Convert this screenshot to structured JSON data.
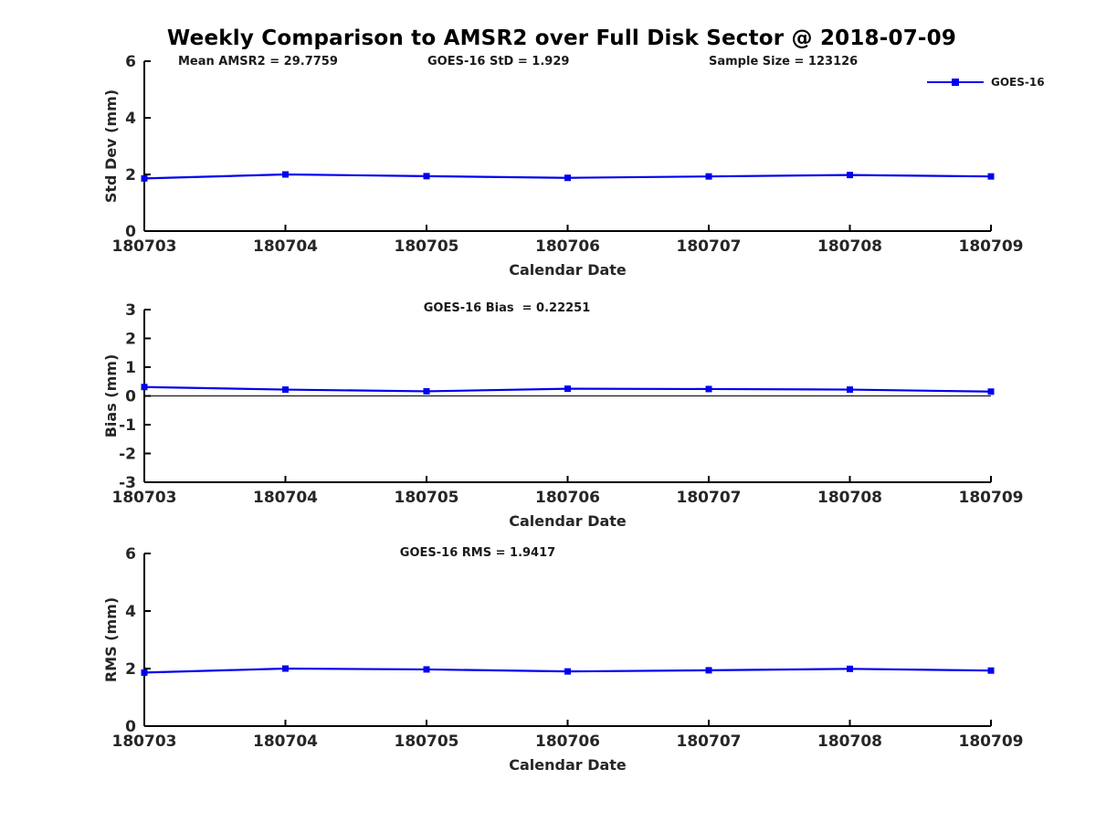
{
  "title": "Weekly Comparison to AMSR2 over Full Disk Sector @ 2018-07-09",
  "annotations": {
    "mean_amsr2": "Mean AMSR2 = 29.7759",
    "goes16_std": "GOES-16 StD = 1.929",
    "sample_size": "Sample Size = 123126"
  },
  "legend": {
    "label": "GOES-16",
    "color": "#0000ee"
  },
  "chart_data": [
    {
      "id": "std-dev",
      "type": "line",
      "title": "",
      "xlabel": "Calendar Date",
      "ylabel": "Std Dev (mm)",
      "ylim": [
        0,
        6
      ],
      "yticks": [
        0,
        2,
        4,
        6
      ],
      "grid": false,
      "zero_line": false,
      "legend_position": "top-right",
      "categories": [
        "180703",
        "180704",
        "180705",
        "180706",
        "180707",
        "180708",
        "180709"
      ],
      "series": [
        {
          "name": "GOES-16",
          "color": "#0000ee",
          "marker": "square",
          "values": [
            1.86,
            2.0,
            1.94,
            1.88,
            1.93,
            1.98,
            1.93
          ]
        }
      ]
    },
    {
      "id": "bias",
      "type": "line",
      "title": "GOES-16 Bias  = 0.22251",
      "xlabel": "Calendar Date",
      "ylabel": "Bias (mm)",
      "ylim": [
        -3,
        3
      ],
      "yticks": [
        -3,
        -2,
        -1,
        0,
        1,
        2,
        3
      ],
      "grid": false,
      "zero_line": true,
      "categories": [
        "180703",
        "180704",
        "180705",
        "180706",
        "180707",
        "180708",
        "180709"
      ],
      "series": [
        {
          "name": "GOES-16",
          "color": "#0000ee",
          "marker": "square",
          "values": [
            0.31,
            0.22,
            0.16,
            0.25,
            0.24,
            0.22,
            0.15
          ]
        }
      ]
    },
    {
      "id": "rms",
      "type": "line",
      "title": "GOES-16 RMS = 1.9417",
      "xlabel": "Calendar Date",
      "ylabel": "RMS (mm)",
      "ylim": [
        0,
        6
      ],
      "yticks": [
        0,
        2,
        4,
        6
      ],
      "grid": false,
      "zero_line": false,
      "categories": [
        "180703",
        "180704",
        "180705",
        "180706",
        "180707",
        "180708",
        "180709"
      ],
      "series": [
        {
          "name": "GOES-16",
          "color": "#0000ee",
          "marker": "square",
          "values": [
            1.86,
            2.0,
            1.97,
            1.9,
            1.94,
            1.99,
            1.93
          ]
        }
      ]
    }
  ]
}
